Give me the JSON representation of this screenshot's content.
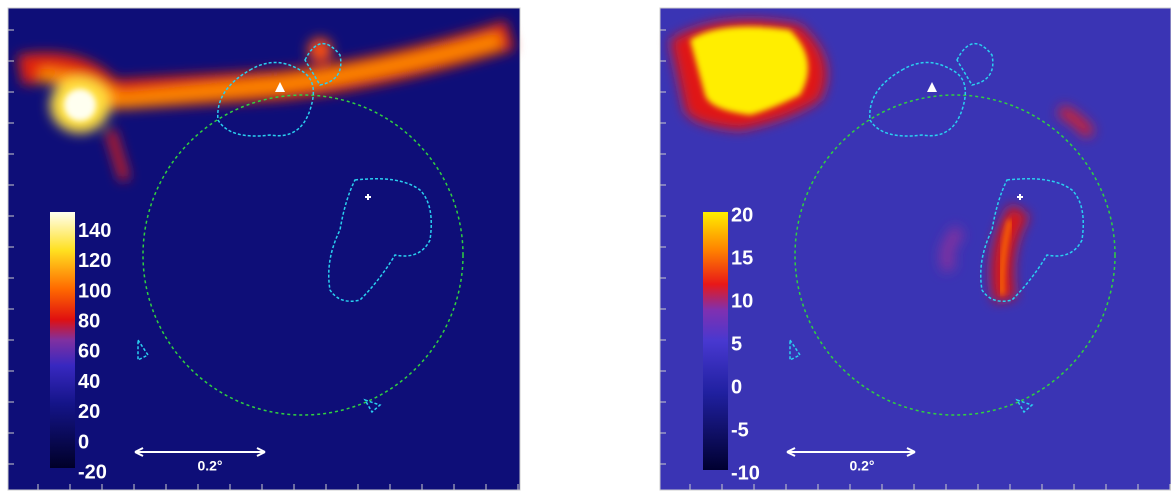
{
  "panels": [
    {
      "colorbar": {
        "ticks": [
          -20,
          0,
          20,
          40,
          60,
          80,
          100,
          120,
          140
        ]
      },
      "scale_label": "0.2°"
    },
    {
      "colorbar": {
        "ticks": [
          -10,
          -5,
          0,
          5,
          10,
          15,
          20
        ]
      },
      "scale_label": "0.2°"
    }
  ]
}
